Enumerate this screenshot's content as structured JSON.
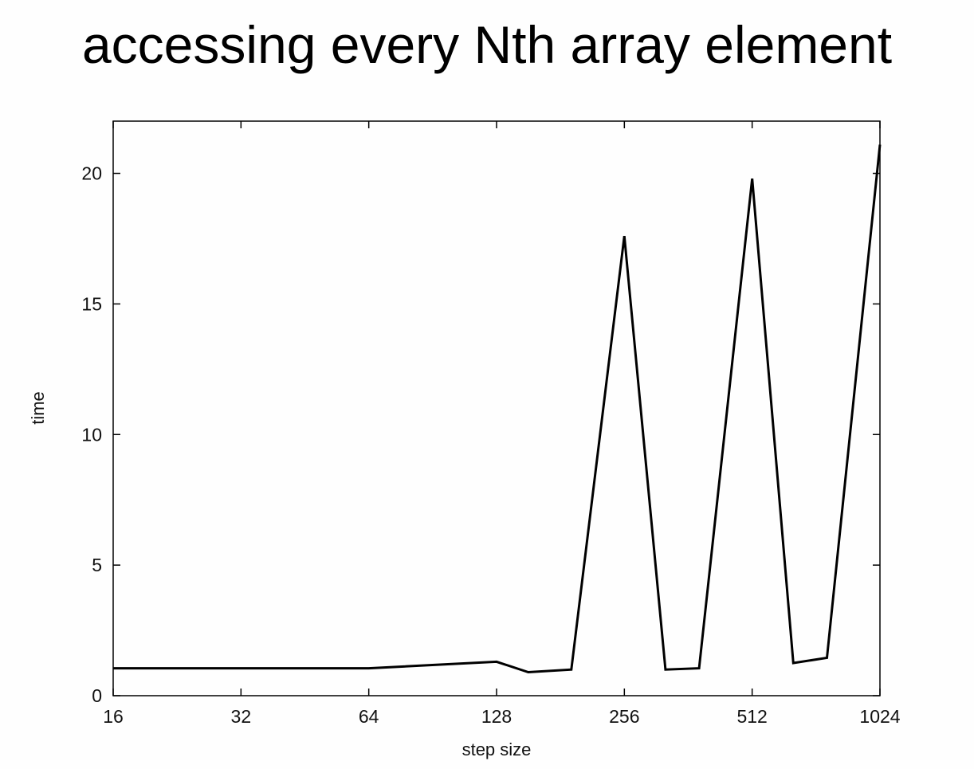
{
  "chart_data": {
    "type": "line",
    "title": "accessing every Nth array element",
    "xlabel": "step size",
    "ylabel": "time",
    "x_scale": "log2",
    "xlim": [
      16,
      1024
    ],
    "ylim": [
      0,
      22
    ],
    "x_ticks": [
      16,
      32,
      64,
      128,
      256,
      512,
      1024
    ],
    "y_ticks": [
      0,
      5,
      10,
      15,
      20
    ],
    "grid": false,
    "series": [
      {
        "x": [
          16,
          32,
          64,
          128,
          152,
          192,
          256,
          320,
          384,
          512,
          640,
          768,
          1024
        ],
        "y": [
          1.05,
          1.05,
          1.05,
          1.3,
          0.9,
          1.0,
          17.6,
          1.0,
          1.05,
          19.8,
          1.25,
          1.45,
          21.1
        ]
      }
    ],
    "line_color": "#000000"
  }
}
